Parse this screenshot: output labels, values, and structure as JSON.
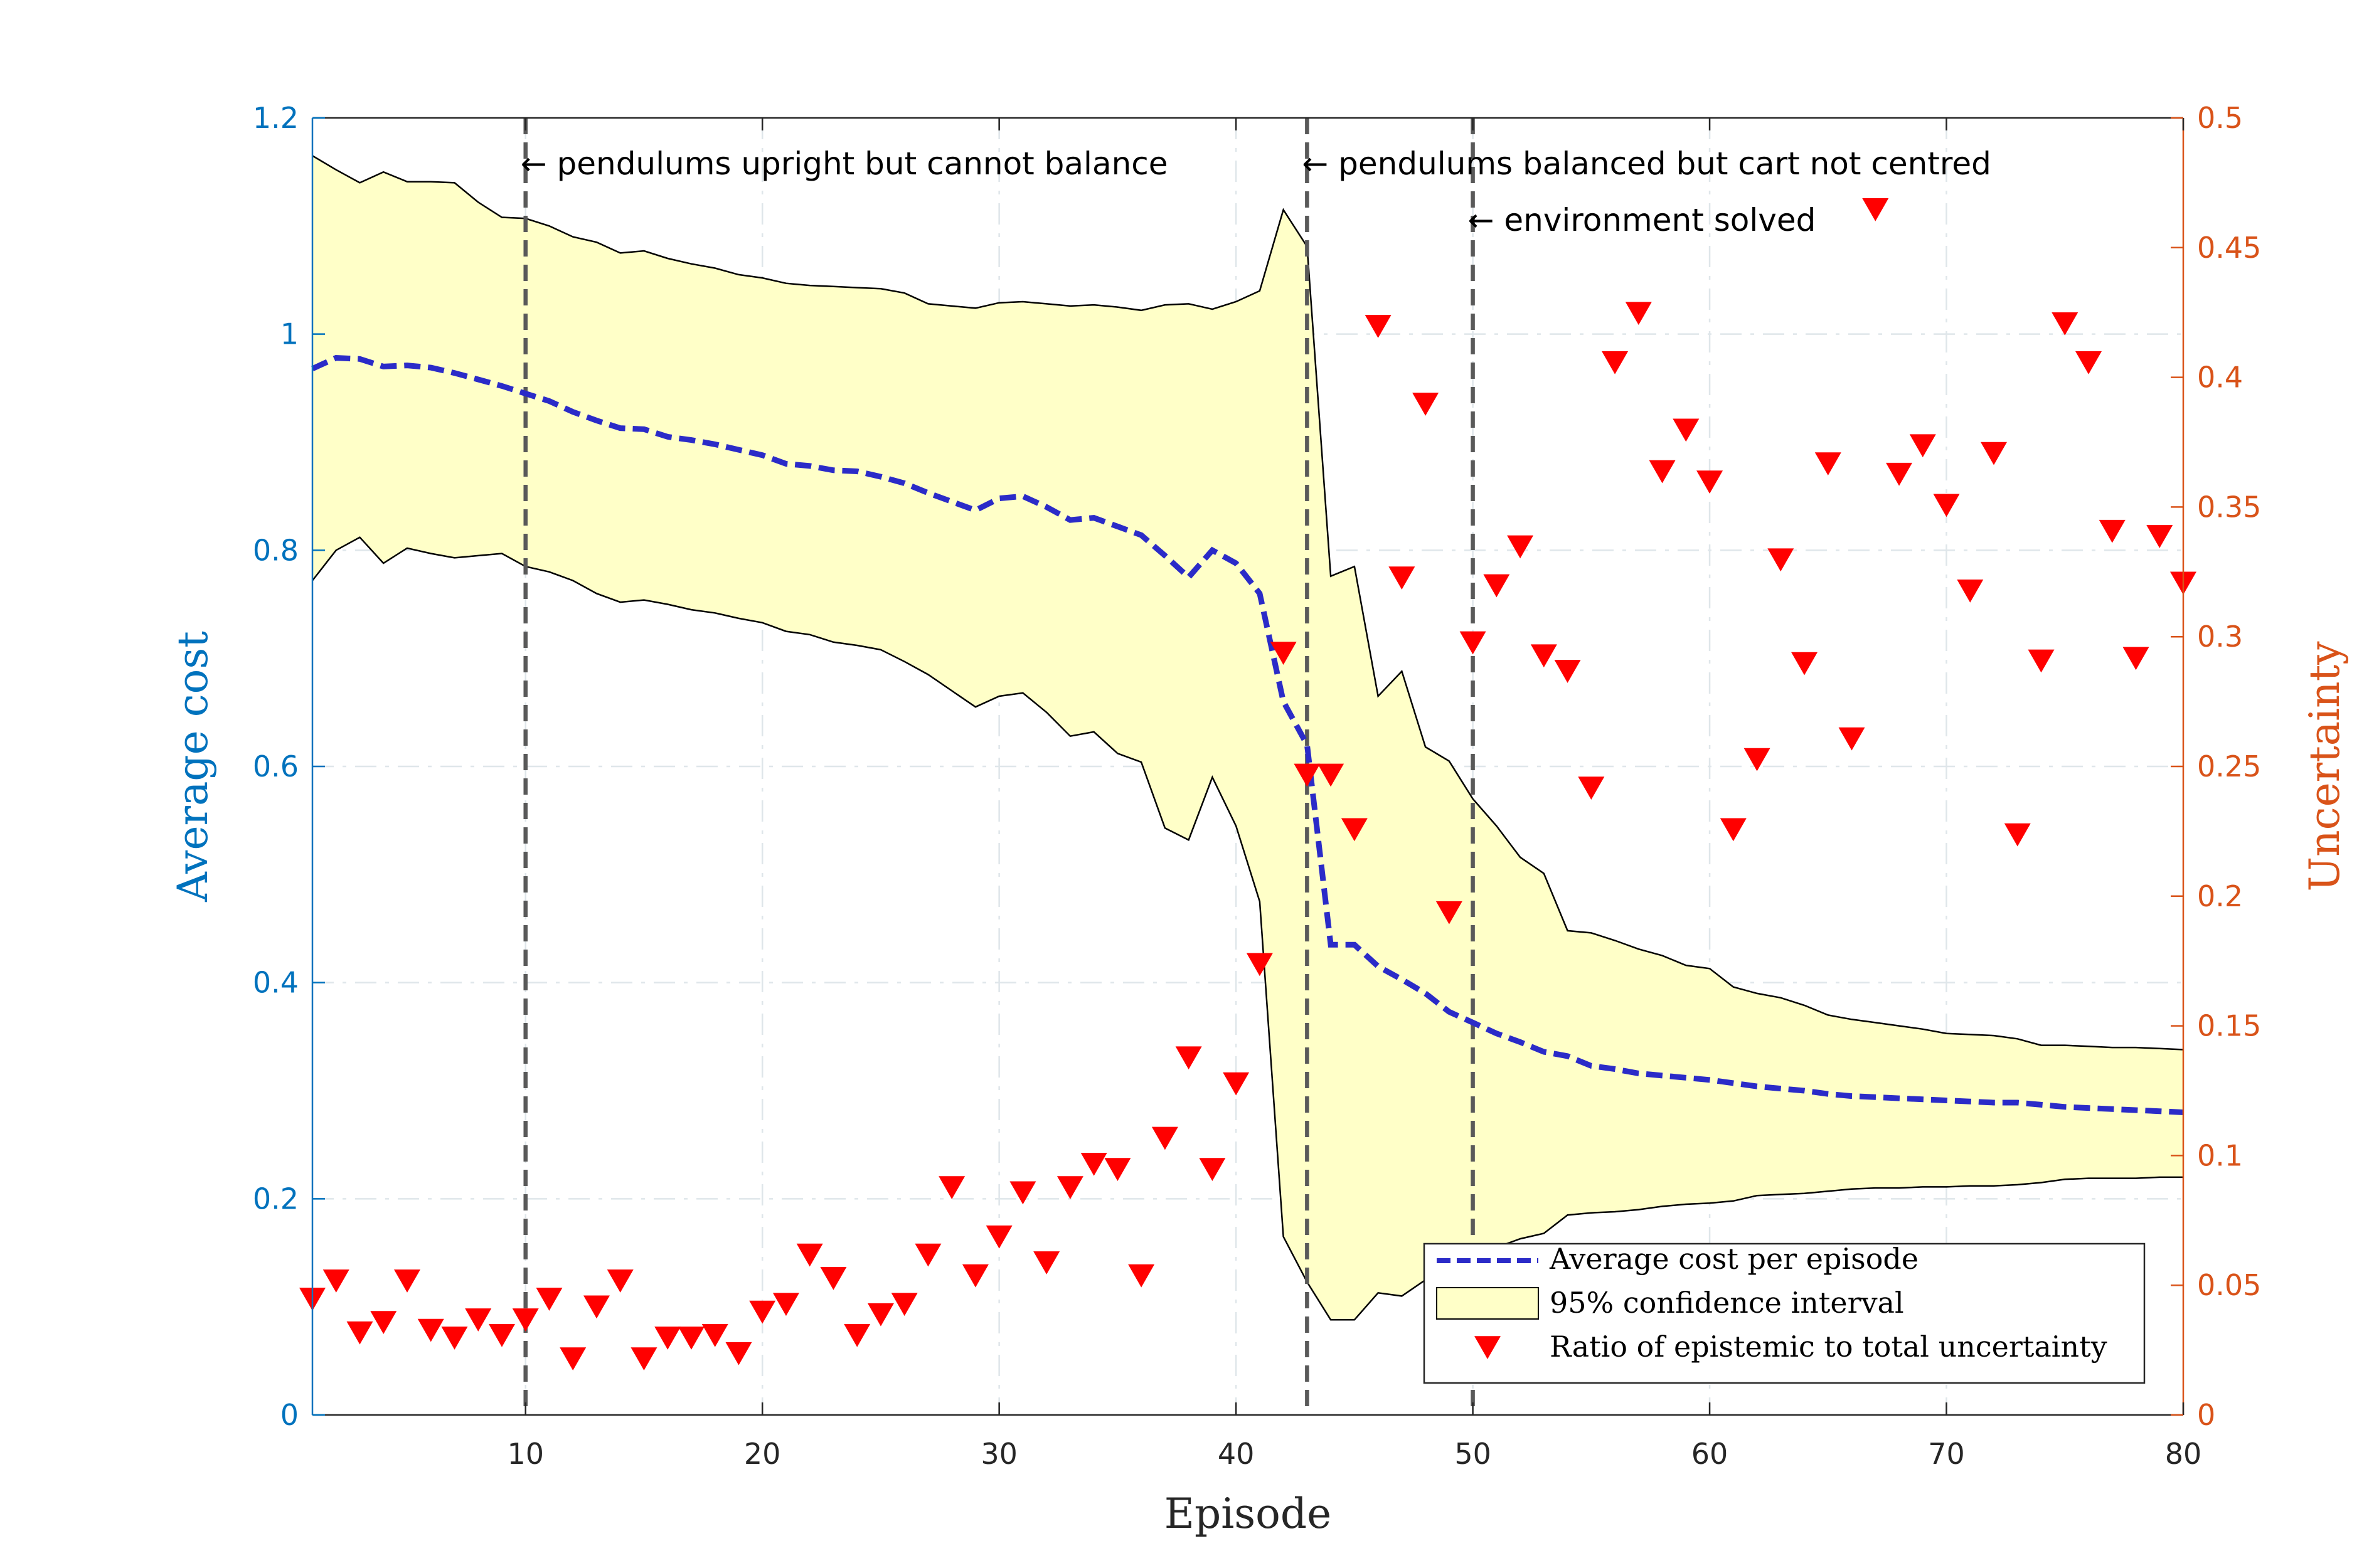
{
  "chart_data": {
    "type": "line",
    "xlabel": "Episode",
    "ylabel_left": "Average cost",
    "ylabel_right": "Uncertainty",
    "xlim": [
      1,
      80
    ],
    "ylim_left": [
      0,
      1.2
    ],
    "ylim_right": [
      0,
      0.5
    ],
    "x_ticks": [
      10,
      20,
      30,
      40,
      50,
      60,
      70,
      80
    ],
    "y_left_ticks": [
      0,
      0.2,
      0.4,
      0.6,
      0.8,
      1,
      1.2
    ],
    "y_left_tick_labels": [
      "0",
      "0.2",
      "0.4",
      "0.6",
      "0.8",
      "1",
      "1.2"
    ],
    "y_right_ticks": [
      0,
      0.05,
      0.1,
      0.15,
      0.2,
      0.25,
      0.3,
      0.35,
      0.4,
      0.45,
      0.5
    ],
    "y_right_tick_labels": [
      "0",
      "0.05",
      "0.1",
      "0.15",
      "0.2",
      "0.25",
      "0.3",
      "0.35",
      "0.4",
      "0.45",
      "0.5"
    ],
    "grid": true,
    "legend_position": "bottom-right",
    "colors": {
      "mean": "#2B2BC8",
      "ci_fill": "#FFFFC8",
      "ci_edge": "#000000",
      "markers": "#FF0000",
      "left_axis": "#0072BD",
      "right_axis": "#D95319",
      "vlines": "#595959"
    },
    "vlines": [
      {
        "x": 10,
        "label": "← pendulums upright but cannot balance",
        "row": 1
      },
      {
        "x": 43,
        "label": "← pendulums balanced but cart not centred",
        "row": 1
      },
      {
        "x": 50,
        "label": "← environment solved",
        "row": 2
      }
    ],
    "series": [
      {
        "name": "Average cost per episode",
        "axis": "left",
        "style": "dashed-line",
        "x": [
          1,
          2,
          3,
          4,
          5,
          6,
          7,
          8,
          9,
          10,
          11,
          12,
          13,
          14,
          15,
          16,
          17,
          18,
          19,
          20,
          21,
          22,
          23,
          24,
          25,
          26,
          27,
          28,
          29,
          30,
          31,
          32,
          33,
          34,
          35,
          36,
          37,
          38,
          39,
          40,
          41,
          42,
          43,
          44,
          45,
          46,
          47,
          48,
          49,
          50,
          51,
          52,
          53,
          54,
          55,
          56,
          57,
          58,
          59,
          60,
          61,
          62,
          63,
          64,
          65,
          66,
          67,
          68,
          69,
          70,
          71,
          72,
          73,
          74,
          75,
          76,
          77,
          78,
          79,
          80
        ],
        "y": [
          0.968,
          0.978,
          0.977,
          0.97,
          0.971,
          0.969,
          0.964,
          0.958,
          0.952,
          0.945,
          0.938,
          0.928,
          0.92,
          0.913,
          0.912,
          0.905,
          0.902,
          0.898,
          0.893,
          0.888,
          0.88,
          0.878,
          0.874,
          0.873,
          0.868,
          0.862,
          0.853,
          0.845,
          0.837,
          0.848,
          0.85,
          0.84,
          0.828,
          0.83,
          0.822,
          0.814,
          0.795,
          0.775,
          0.8,
          0.788,
          0.76,
          0.66,
          0.62,
          0.435,
          0.435,
          0.415,
          0.403,
          0.39,
          0.373,
          0.363,
          0.353,
          0.345,
          0.336,
          0.332,
          0.323,
          0.32,
          0.316,
          0.314,
          0.312,
          0.31,
          0.307,
          0.304,
          0.302,
          0.3,
          0.297,
          0.295,
          0.294,
          0.293,
          0.292,
          0.291,
          0.29,
          0.289,
          0.289,
          0.287,
          0.285,
          0.284,
          0.283,
          0.282,
          0.281,
          0.28
        ]
      },
      {
        "name": "95% confidence interval",
        "axis": "left",
        "style": "band",
        "x": [
          1,
          2,
          3,
          4,
          5,
          6,
          7,
          8,
          9,
          10,
          11,
          12,
          13,
          14,
          15,
          16,
          17,
          18,
          19,
          20,
          21,
          22,
          23,
          24,
          25,
          26,
          27,
          28,
          29,
          30,
          31,
          32,
          33,
          34,
          35,
          36,
          37,
          38,
          39,
          40,
          41,
          42,
          43,
          44,
          45,
          46,
          47,
          48,
          49,
          50,
          51,
          52,
          53,
          54,
          55,
          56,
          57,
          58,
          59,
          60,
          61,
          62,
          63,
          64,
          65,
          66,
          67,
          68,
          69,
          70,
          71,
          72,
          73,
          74,
          75,
          76,
          77,
          78,
          79,
          80
        ],
        "upper": [
          1.165,
          1.152,
          1.14,
          1.15,
          1.141,
          1.141,
          1.14,
          1.122,
          1.108,
          1.107,
          1.1,
          1.09,
          1.085,
          1.075,
          1.077,
          1.07,
          1.065,
          1.061,
          1.055,
          1.052,
          1.047,
          1.045,
          1.044,
          1.043,
          1.042,
          1.038,
          1.028,
          1.026,
          1.024,
          1.029,
          1.03,
          1.028,
          1.026,
          1.027,
          1.025,
          1.022,
          1.027,
          1.028,
          1.023,
          1.03,
          1.04,
          1.115,
          1.081,
          0.776,
          0.785,
          0.665,
          0.688,
          0.618,
          0.605,
          0.57,
          0.545,
          0.516,
          0.501,
          0.448,
          0.446,
          0.439,
          0.431,
          0.425,
          0.416,
          0.413,
          0.396,
          0.39,
          0.386,
          0.379,
          0.37,
          0.366,
          0.363,
          0.36,
          0.357,
          0.353,
          0.352,
          0.351,
          0.348,
          0.342,
          0.342,
          0.341,
          0.34,
          0.34,
          0.339,
          0.338
        ],
        "lower": [
          0.772,
          0.8,
          0.812,
          0.788,
          0.802,
          0.797,
          0.793,
          0.795,
          0.797,
          0.785,
          0.78,
          0.772,
          0.76,
          0.752,
          0.754,
          0.75,
          0.745,
          0.742,
          0.737,
          0.733,
          0.725,
          0.722,
          0.715,
          0.712,
          0.708,
          0.697,
          0.685,
          0.67,
          0.655,
          0.665,
          0.668,
          0.65,
          0.628,
          0.632,
          0.612,
          0.604,
          0.543,
          0.532,
          0.59,
          0.545,
          0.475,
          0.165,
          0.123,
          0.088,
          0.088,
          0.113,
          0.11,
          0.125,
          0.133,
          0.14,
          0.155,
          0.163,
          0.168,
          0.185,
          0.187,
          0.188,
          0.19,
          0.193,
          0.195,
          0.196,
          0.198,
          0.203,
          0.204,
          0.205,
          0.207,
          0.209,
          0.21,
          0.21,
          0.211,
          0.211,
          0.212,
          0.212,
          0.213,
          0.215,
          0.218,
          0.219,
          0.219,
          0.219,
          0.22,
          0.22
        ]
      },
      {
        "name": "Ratio of epistemic to total uncertainty",
        "axis": "right",
        "style": "markers",
        "x": [
          1,
          2,
          3,
          4,
          5,
          6,
          7,
          8,
          9,
          10,
          11,
          12,
          13,
          14,
          15,
          16,
          17,
          18,
          19,
          20,
          21,
          22,
          23,
          24,
          25,
          26,
          27,
          28,
          29,
          30,
          31,
          32,
          33,
          34,
          35,
          36,
          37,
          38,
          39,
          40,
          41,
          42,
          43,
          44,
          45,
          46,
          47,
          48,
          49,
          50,
          51,
          52,
          53,
          54,
          55,
          56,
          57,
          58,
          59,
          60,
          61,
          62,
          63,
          64,
          65,
          66,
          67,
          68,
          69,
          70,
          71,
          72,
          73,
          74,
          75,
          76,
          77,
          78,
          79,
          80
        ],
        "y": [
          0.045,
          0.052,
          0.032,
          0.036,
          0.052,
          0.033,
          0.03,
          0.037,
          0.031,
          0.037,
          0.045,
          0.022,
          0.042,
          0.052,
          0.022,
          0.03,
          0.03,
          0.031,
          0.024,
          0.04,
          0.043,
          0.062,
          0.053,
          0.031,
          0.039,
          0.043,
          0.062,
          0.088,
          0.054,
          0.069,
          0.086,
          0.059,
          0.088,
          0.097,
          0.095,
          0.054,
          0.107,
          0.138,
          0.095,
          0.128,
          0.174,
          0.294,
          0.247,
          0.247,
          0.226,
          0.42,
          0.323,
          0.39,
          0.194,
          0.298,
          0.32,
          0.335,
          0.293,
          0.287,
          0.242,
          0.406,
          0.425,
          0.364,
          0.38,
          0.36,
          0.226,
          0.253,
          0.33,
          0.29,
          0.367,
          0.261,
          0.465,
          0.363,
          0.374,
          0.351,
          0.318,
          0.371,
          0.224,
          0.291,
          0.421,
          0.406,
          0.341,
          0.292,
          0.339,
          0.321
        ]
      }
    ]
  }
}
